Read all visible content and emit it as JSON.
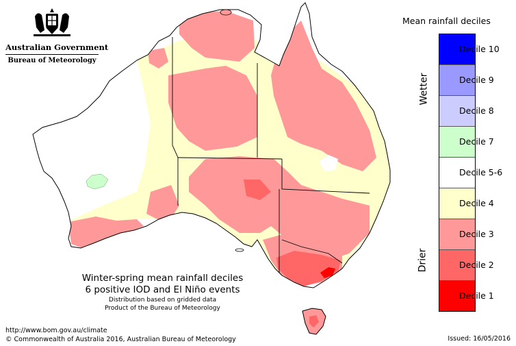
{
  "agency": {
    "government": "Australian Government",
    "bureau": "Bureau of Meteorology"
  },
  "map": {
    "title_line1": "Winter-spring mean rainfall deciles",
    "title_line2": "6 positive IOD and El Niño events",
    "subtitle_line1": "Distribution based on gridded data",
    "subtitle_line2": "Product of the Bureau of Meteorology"
  },
  "legend": {
    "title": "Mean rainfall deciles",
    "wetter_label": "Wetter",
    "drier_label": "Drier",
    "classes": [
      {
        "label": "Decile 10",
        "color": "#0000ff"
      },
      {
        "label": "Decile 9",
        "color": "#9999ff"
      },
      {
        "label": "Decile 8",
        "color": "#ccccff"
      },
      {
        "label": "Decile 7",
        "color": "#ccffcc"
      },
      {
        "label": "Decile 5-6",
        "color": "#ffffff"
      },
      {
        "label": "Decile 4",
        "color": "#ffffcc"
      },
      {
        "label": "Decile 3",
        "color": "#ff9999"
      },
      {
        "label": "Decile 2",
        "color": "#ff6666"
      },
      {
        "label": "Decile 1",
        "color": "#ff0000"
      }
    ]
  },
  "footer": {
    "url": "http://www.bom.gov.au/climate",
    "copyright": "© Commonwealth of Australia 2016, Australian Bureau of Meteorology",
    "issued": "Issued: 16/05/2016"
  }
}
